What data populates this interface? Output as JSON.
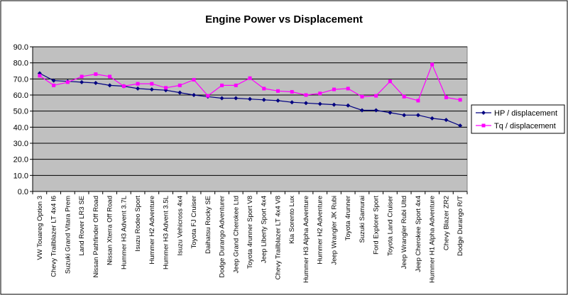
{
  "chart_data": {
    "type": "line",
    "title": "Engine Power vs Displacement",
    "xlabel": "",
    "ylabel": "",
    "ylim": [
      0,
      90
    ],
    "yticks": [
      "0.0",
      "10.0",
      "20.0",
      "30.0",
      "40.0",
      "50.0",
      "60.0",
      "70.0",
      "80.0",
      "90.0"
    ],
    "grid": true,
    "legend_position": "right",
    "categories": [
      "VW Touareg Option 3",
      "Chevy Trailblazer LT 4x4 I6",
      "Suzuki Grand Vitara Prem",
      "Land Rover LR3 SE",
      "Nissan Pathfinder Off Road",
      "Nissan Xterra Off Road",
      "Hummer H3 Advent 3.7L",
      "Isuzu Rodeo Sport",
      "Hummer H2 Adventure",
      "Hummer H3 Advent 3.5L",
      "Isuzu Vehicross 4x4",
      "Toyota FJ Cruiser",
      "Daihatsu Rocky SE",
      "Dodge Durango Adventurer",
      "Jeep Grand Cherokee Ltd",
      "Toyota 4runner Sport V8",
      "Jeep Liberty Sport 4x4",
      "Chevy Trailblazer LT 4x4 V8",
      "Kia Sorento Lux",
      "Hummer H3 Alpha Adventure",
      "Hummer H2 Adventure",
      "Jeep Wrangler JK Rubi",
      "Toyota 4runner",
      "Suzuki Samurai",
      "Ford Explorer Sport",
      "Toyota Land Cruiser",
      "Jeep Wrangler Rubi Ultd",
      "Jeep Cherokee Sport 4x4",
      "Hummer H1 Alpha Adventure",
      "Chevy Blazer ZR2",
      "Dodge Durango R/T"
    ],
    "series": [
      {
        "name": "HP / displacement",
        "color": "#000080",
        "marker": "diamond",
        "values": [
          73.5,
          69.0,
          68.5,
          68.0,
          67.5,
          66.0,
          65.5,
          64.0,
          63.5,
          63.0,
          61.5,
          60.0,
          59.0,
          58.0,
          58.0,
          57.5,
          57.0,
          56.5,
          55.5,
          55.0,
          54.5,
          54.0,
          53.5,
          50.5,
          50.5,
          49.0,
          47.5,
          47.5,
          45.5,
          44.5,
          41.0
        ]
      },
      {
        "name": "Tq / displacement",
        "color": "#ff00ff",
        "marker": "square",
        "values": [
          72.0,
          66.0,
          68.0,
          71.5,
          73.0,
          71.5,
          65.5,
          67.0,
          67.0,
          64.5,
          66.0,
          69.5,
          59.5,
          66.0,
          66.0,
          70.5,
          64.0,
          62.5,
          62.0,
          60.0,
          61.0,
          63.5,
          64.0,
          59.0,
          59.5,
          68.5,
          59.0,
          56.5,
          79.0,
          58.5,
          57.0
        ]
      }
    ],
    "colors": {
      "plot_bg": "#c0c0c0",
      "page_bg": "#ffffff"
    }
  }
}
